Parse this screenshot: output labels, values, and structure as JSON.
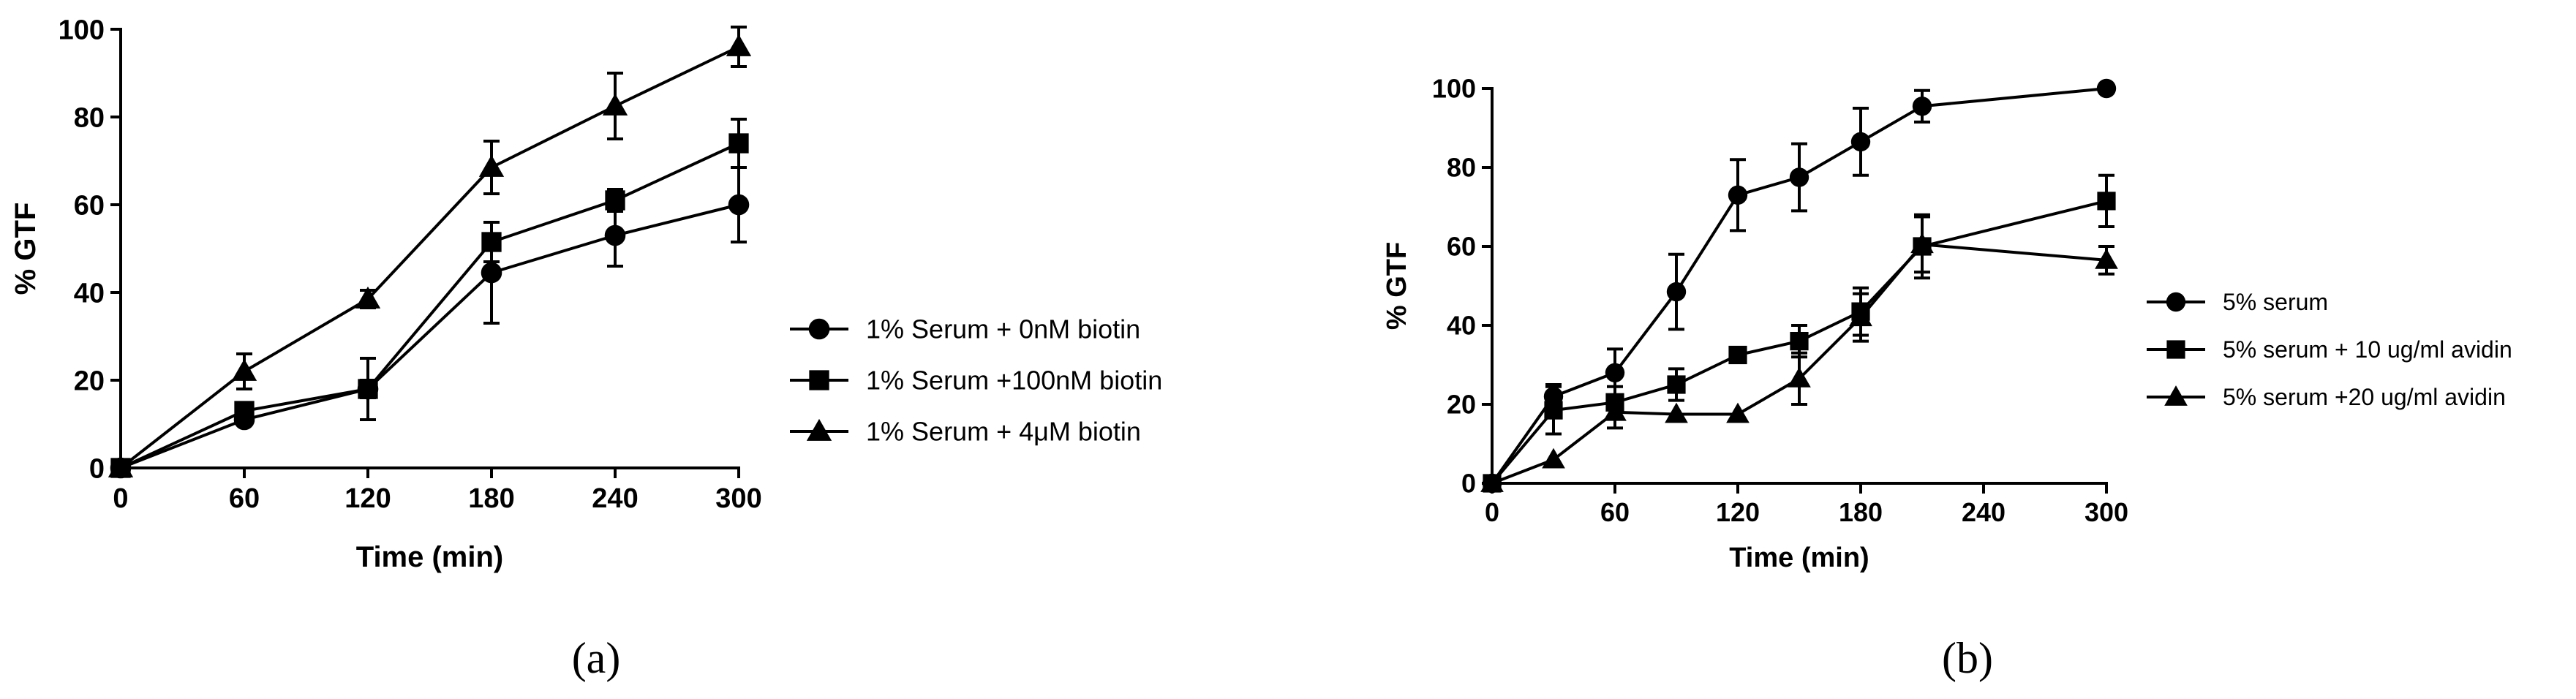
{
  "chart_data": [
    {
      "type": "line",
      "panel_label": "(a)",
      "xlabel": "Time (min)",
      "ylabel": "% GTF",
      "xlim": [
        0,
        300
      ],
      "ylim": [
        0,
        100
      ],
      "xticks": [
        0,
        60,
        120,
        180,
        240,
        300
      ],
      "yticks": [
        0,
        20,
        40,
        60,
        80,
        100
      ],
      "grid": false,
      "legend_position": "right",
      "series": [
        {
          "name": "1% Serum + 0nM biotin",
          "marker": "circle",
          "x": [
            0,
            60,
            120,
            180,
            240,
            300
          ],
          "y": [
            0,
            11,
            18,
            44.5,
            53,
            60
          ],
          "err": [
            0,
            1,
            2,
            11.5,
            7,
            8.5
          ]
        },
        {
          "name": "1% Serum +100nM biotin",
          "marker": "square",
          "x": [
            0,
            60,
            120,
            180,
            240,
            300
          ],
          "y": [
            0,
            13,
            18,
            51.5,
            61,
            74
          ],
          "err": [
            0,
            1,
            7,
            4.5,
            2.5,
            5.5
          ]
        },
        {
          "name": "1% Serum + 4μM biotin",
          "marker": "triangle",
          "x": [
            0,
            60,
            120,
            180,
            240,
            300
          ],
          "y": [
            0,
            22,
            38.5,
            68.5,
            82.5,
            96
          ],
          "err": [
            0,
            4,
            2,
            6,
            7.5,
            4.5
          ]
        }
      ]
    },
    {
      "type": "line",
      "panel_label": "(b)",
      "xlabel": "Time (min)",
      "ylabel": "% GTF",
      "xlim": [
        0,
        300
      ],
      "ylim": [
        0,
        100
      ],
      "xticks": [
        0,
        60,
        120,
        180,
        240,
        300
      ],
      "yticks": [
        0,
        20,
        40,
        60,
        80,
        100
      ],
      "grid": false,
      "legend_position": "right",
      "series": [
        {
          "name": "5% serum",
          "marker": "circle",
          "x": [
            0,
            30,
            60,
            90,
            120,
            150,
            180,
            210,
            300
          ],
          "y": [
            0,
            22,
            28,
            48.5,
            73,
            77.5,
            86.5,
            95.5,
            100
          ],
          "err": [
            0,
            3,
            6,
            9.5,
            9,
            8.5,
            8.5,
            4,
            0
          ]
        },
        {
          "name": "5% serum + 10 ug/ml avidin",
          "marker": "square",
          "x": [
            0,
            30,
            60,
            90,
            120,
            150,
            180,
            210,
            300
          ],
          "y": [
            0,
            18.5,
            20.5,
            25,
            32.5,
            36,
            43.5,
            60,
            71.5
          ],
          "err": [
            0,
            6,
            4,
            4,
            1,
            4,
            6,
            8,
            6.5
          ]
        },
        {
          "name": "5% serum +20 ug/ml avidin",
          "marker": "triangle",
          "x": [
            0,
            30,
            60,
            90,
            120,
            150,
            180,
            210,
            300
          ],
          "y": [
            0,
            6,
            18,
            17.5,
            17.5,
            26.5,
            42,
            60.5,
            56.5
          ],
          "err": [
            0,
            0,
            4,
            0,
            0,
            6.5,
            6,
            7,
            3.5
          ]
        }
      ]
    }
  ]
}
